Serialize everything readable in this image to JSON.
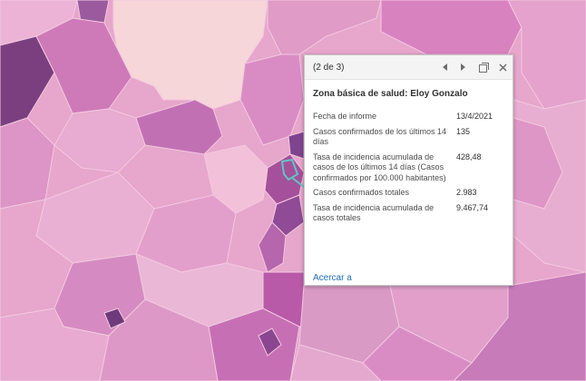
{
  "popup": {
    "counter": "(2 de 3)",
    "title": "Zona básica de salud: Eloy Gonzalo",
    "rows": [
      {
        "label": "Fecha de informe",
        "value": "13/4/2021"
      },
      {
        "label": "Casos confirmados de los últimos 14 días",
        "value": "135"
      },
      {
        "label": "Tasa de incidencia acumulada de casos de los últimos 14 días (Casos confirmados por 100.000 habitantes)",
        "value": "428,48"
      },
      {
        "label": "Casos confirmados totales",
        "value": "2.983"
      },
      {
        "label": "Tasa de incidencia acumulada de casos totales",
        "value": "9.467,74"
      }
    ],
    "zoom_link": "Acercar a",
    "buttons": {
      "previous": "previous-icon",
      "next": "next-icon",
      "dock": "dock-icon",
      "close": "close-icon"
    }
  },
  "colors": {
    "map_base": "#e7a6cc",
    "light_region": "#f6d6d9",
    "dark_region": "#a4509a",
    "selection_outline": "#5ec6c6",
    "link": "#1f6fb5"
  }
}
